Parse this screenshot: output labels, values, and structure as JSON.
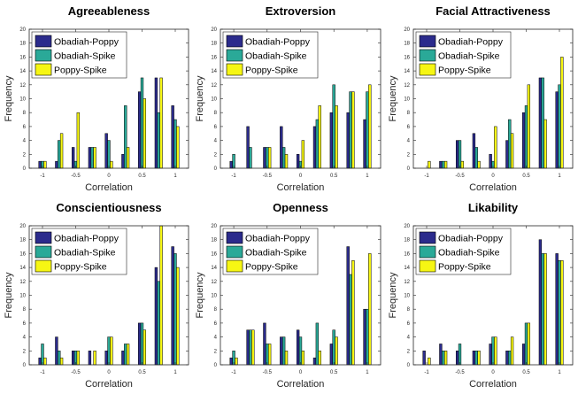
{
  "colors": {
    "series": [
      "#2b2b8c",
      "#2aa998",
      "#f6f613"
    ],
    "axis": "#262626"
  },
  "chart_data": [
    {
      "type": "bar",
      "title": "Agreeableness",
      "xlabel": "Correlation",
      "ylabel": "Frequency",
      "x": [
        -1.0,
        -0.875,
        -0.75,
        -0.625,
        -0.5,
        -0.375,
        -0.25,
        -0.125,
        0.0,
        0.125,
        0.25,
        0.375,
        0.5,
        0.625,
        0.75,
        0.875,
        1.0
      ],
      "xlim": [
        -1.2,
        1.2
      ],
      "ylim": [
        0,
        20
      ],
      "xticks": [
        "-1",
        "-0.5",
        "0",
        "0.5",
        "1"
      ],
      "yticks": [
        "0",
        "2",
        "4",
        "6",
        "8",
        "10",
        "12",
        "14",
        "16",
        "18",
        "20"
      ],
      "legend": "top-left",
      "series": [
        {
          "name": "Obadiah-Poppy",
          "values": [
            1,
            0,
            1,
            0,
            3,
            0,
            3,
            0,
            5,
            0,
            2,
            0,
            11,
            0,
            13,
            0,
            9
          ]
        },
        {
          "name": "Obadiah-Spike",
          "values": [
            1,
            0,
            4,
            0,
            1,
            0,
            3,
            0,
            4,
            0,
            9,
            0,
            13,
            0,
            8,
            0,
            7
          ]
        },
        {
          "name": "Poppy-Spike",
          "values": [
            1,
            0,
            5,
            0,
            8,
            0,
            3,
            0,
            1,
            0,
            3,
            0,
            10,
            0,
            13,
            0,
            6
          ]
        }
      ]
    },
    {
      "type": "bar",
      "title": "Extroversion",
      "xlabel": "Correlation",
      "ylabel": "Frequency",
      "x": [
        -1.0,
        -0.875,
        -0.75,
        -0.625,
        -0.5,
        -0.375,
        -0.25,
        -0.125,
        0.0,
        0.125,
        0.25,
        0.375,
        0.5,
        0.625,
        0.75,
        0.875,
        1.0
      ],
      "xlim": [
        -1.2,
        1.2
      ],
      "ylim": [
        0,
        20
      ],
      "xticks": [
        "-1",
        "-0.5",
        "0",
        "0.5",
        "1"
      ],
      "yticks": [
        "0",
        "2",
        "4",
        "6",
        "8",
        "10",
        "12",
        "14",
        "16",
        "18",
        "20"
      ],
      "legend": "top-left",
      "series": [
        {
          "name": "Obadiah-Poppy",
          "values": [
            1,
            0,
            6,
            0,
            3,
            0,
            6,
            0,
            2,
            0,
            6,
            0,
            8,
            0,
            8,
            0,
            7
          ]
        },
        {
          "name": "Obadiah-Spike",
          "values": [
            2,
            0,
            3,
            0,
            3,
            0,
            3,
            0,
            1,
            0,
            7,
            0,
            12,
            0,
            11,
            0,
            11
          ]
        },
        {
          "name": "Poppy-Spike",
          "values": [
            0,
            0,
            0,
            0,
            3,
            0,
            2,
            0,
            4,
            0,
            9,
            0,
            9,
            0,
            11,
            0,
            12
          ]
        }
      ]
    },
    {
      "type": "bar",
      "title": "Facial Attractiveness",
      "xlabel": "Correlation",
      "ylabel": "Frequency",
      "x": [
        -1.0,
        -0.875,
        -0.75,
        -0.625,
        -0.5,
        -0.375,
        -0.25,
        -0.125,
        0.0,
        0.125,
        0.25,
        0.375,
        0.5,
        0.625,
        0.75,
        0.875,
        1.0
      ],
      "xlim": [
        -1.2,
        1.2
      ],
      "ylim": [
        0,
        20
      ],
      "xticks": [
        "-1",
        "-0.5",
        "0",
        "0.5",
        "1"
      ],
      "yticks": [
        "0",
        "2",
        "4",
        "6",
        "8",
        "10",
        "12",
        "14",
        "16",
        "18",
        "20"
      ],
      "legend": "top-left",
      "series": [
        {
          "name": "Obadiah-Poppy",
          "values": [
            0,
            0,
            1,
            0,
            4,
            0,
            5,
            0,
            2,
            0,
            4,
            0,
            8,
            0,
            13,
            0,
            11
          ]
        },
        {
          "name": "Obadiah-Spike",
          "values": [
            0,
            0,
            1,
            0,
            4,
            0,
            3,
            0,
            1,
            0,
            7,
            0,
            9,
            0,
            13,
            0,
            12
          ]
        },
        {
          "name": "Poppy-Spike",
          "values": [
            1,
            0,
            1,
            0,
            1,
            0,
            1,
            0,
            6,
            0,
            5,
            0,
            12,
            0,
            7,
            0,
            16
          ]
        }
      ]
    },
    {
      "type": "bar",
      "title": "Conscientiousness",
      "xlabel": "Correlation",
      "ylabel": "Frequency",
      "x": [
        -1.0,
        -0.875,
        -0.75,
        -0.625,
        -0.5,
        -0.375,
        -0.25,
        -0.125,
        0.0,
        0.125,
        0.25,
        0.375,
        0.5,
        0.625,
        0.75,
        0.875,
        1.0
      ],
      "xlim": [
        -1.2,
        1.2
      ],
      "ylim": [
        0,
        20
      ],
      "xticks": [
        "-1",
        "-0.5",
        "0",
        "0.5",
        "1"
      ],
      "yticks": [
        "0",
        "2",
        "4",
        "6",
        "8",
        "10",
        "12",
        "14",
        "16",
        "18",
        "20"
      ],
      "legend": "top-left",
      "series": [
        {
          "name": "Obadiah-Poppy",
          "values": [
            1,
            0,
            4,
            0,
            2,
            0,
            2,
            0,
            2,
            0,
            2,
            0,
            6,
            0,
            14,
            0,
            17
          ]
        },
        {
          "name": "Obadiah-Spike",
          "values": [
            3,
            0,
            2,
            0,
            2,
            0,
            0,
            0,
            4,
            0,
            3,
            0,
            6,
            0,
            12,
            0,
            16
          ]
        },
        {
          "name": "Poppy-Spike",
          "values": [
            1,
            0,
            1,
            0,
            2,
            0,
            2,
            0,
            4,
            0,
            3,
            0,
            5,
            0,
            20,
            0,
            14
          ]
        }
      ]
    },
    {
      "type": "bar",
      "title": "Openness",
      "xlabel": "Correlation",
      "ylabel": "Frequency",
      "x": [
        -1.0,
        -0.875,
        -0.75,
        -0.625,
        -0.5,
        -0.375,
        -0.25,
        -0.125,
        0.0,
        0.125,
        0.25,
        0.375,
        0.5,
        0.625,
        0.75,
        0.875,
        1.0
      ],
      "xlim": [
        -1.2,
        1.2
      ],
      "ylim": [
        0,
        20
      ],
      "xticks": [
        "-1",
        "-0.5",
        "0",
        "0.5",
        "1"
      ],
      "yticks": [
        "0",
        "2",
        "4",
        "6",
        "8",
        "10",
        "12",
        "14",
        "16",
        "18",
        "20"
      ],
      "legend": "top-left",
      "series": [
        {
          "name": "Obadiah-Poppy",
          "values": [
            1,
            0,
            5,
            0,
            6,
            0,
            4,
            0,
            5,
            0,
            1,
            0,
            3,
            0,
            17,
            0,
            8
          ]
        },
        {
          "name": "Obadiah-Spike",
          "values": [
            2,
            0,
            5,
            0,
            3,
            0,
            4,
            0,
            4,
            0,
            6,
            0,
            5,
            0,
            13,
            0,
            8
          ]
        },
        {
          "name": "Poppy-Spike",
          "values": [
            1,
            0,
            5,
            0,
            3,
            0,
            2,
            0,
            2,
            0,
            2,
            0,
            4,
            0,
            15,
            0,
            16
          ]
        }
      ]
    },
    {
      "type": "bar",
      "title": "Likability",
      "xlabel": "Correlation",
      "ylabel": "Frequency",
      "x": [
        -1.0,
        -0.875,
        -0.75,
        -0.625,
        -0.5,
        -0.375,
        -0.25,
        -0.125,
        0.0,
        0.125,
        0.25,
        0.375,
        0.5,
        0.625,
        0.75,
        0.875,
        1.0
      ],
      "xlim": [
        -1.2,
        1.2
      ],
      "ylim": [
        0,
        20
      ],
      "xticks": [
        "-1",
        "-0.5",
        "0",
        "0.5",
        "1"
      ],
      "yticks": [
        "0",
        "2",
        "4",
        "6",
        "8",
        "10",
        "12",
        "14",
        "16",
        "18",
        "20"
      ],
      "legend": "top-left",
      "series": [
        {
          "name": "Obadiah-Poppy",
          "values": [
            2,
            0,
            3,
            0,
            2,
            0,
            2,
            0,
            3,
            0,
            2,
            0,
            3,
            0,
            18,
            0,
            16
          ]
        },
        {
          "name": "Obadiah-Spike",
          "values": [
            0,
            0,
            2,
            0,
            3,
            0,
            2,
            0,
            4,
            0,
            2,
            0,
            6,
            0,
            16,
            0,
            15
          ]
        },
        {
          "name": "Poppy-Spike",
          "values": [
            1,
            0,
            2,
            0,
            0,
            0,
            2,
            0,
            4,
            0,
            4,
            0,
            6,
            0,
            16,
            0,
            15
          ]
        }
      ]
    }
  ]
}
